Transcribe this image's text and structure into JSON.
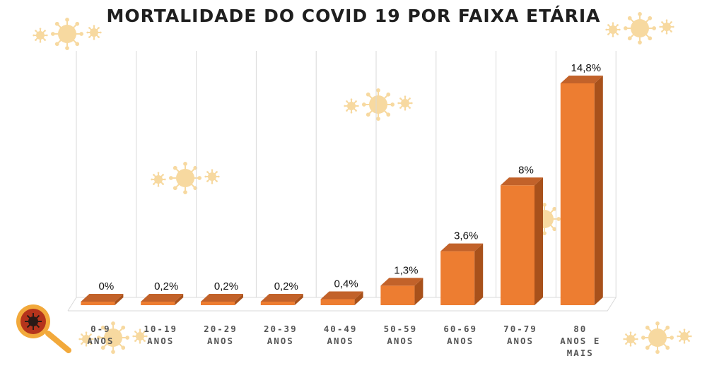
{
  "colors": {
    "bar_front": "#ED7D31",
    "bar_side": "#A8511B",
    "bar_top": "#C2622A",
    "grid": "#d9d9d9",
    "virus": "#F7D9A0",
    "badge_ring": "#F2A93B",
    "badge_core": "#B5341C"
  },
  "chart_data": {
    "type": "bar",
    "title": "MORTALIDADE DO COVID 19 POR FAIXA ETÁRIA",
    "categories": [
      [
        "0-9",
        "ANOS"
      ],
      [
        "10-19",
        "ANOS"
      ],
      [
        "20-29",
        "ANOS"
      ],
      [
        "20-39",
        "ANOS"
      ],
      [
        "40-49",
        "ANOS"
      ],
      [
        "50-59",
        "ANOS"
      ],
      [
        "60-69",
        "ANOS"
      ],
      [
        "70-79",
        "ANOS"
      ],
      [
        "80",
        "ANOS E",
        "MAIS"
      ]
    ],
    "values": [
      0,
      0.2,
      0.2,
      0.2,
      0.4,
      1.3,
      3.6,
      8,
      14.8
    ],
    "value_labels": [
      "0%",
      "0,2%",
      "0,2%",
      "0,2%",
      "0,4%",
      "1,3%",
      "3,6%",
      "8%",
      "14,8%"
    ],
    "ylim": [
      0,
      16
    ],
    "xlabel": "",
    "ylabel": "",
    "grid": true,
    "legend": "none"
  }
}
